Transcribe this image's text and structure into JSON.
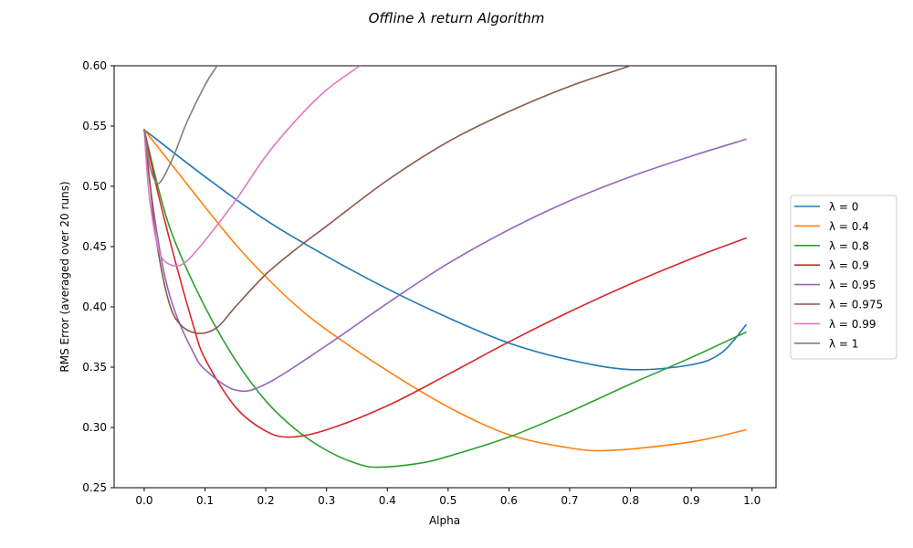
{
  "chart_data": {
    "type": "line",
    "title": "Offline λ return Algorithm",
    "xlabel": "Alpha",
    "ylabel": "RMS Error (averaged over 20 runs)",
    "xlim": [
      -0.0495,
      1.0395
    ],
    "ylim": [
      0.25,
      0.6
    ],
    "xticks": [
      "0.0",
      "0.1",
      "0.2",
      "0.3",
      "0.4",
      "0.5",
      "0.6",
      "0.7",
      "0.8",
      "0.9",
      "1.0"
    ],
    "yticks": [
      "0.25",
      "0.30",
      "0.35",
      "0.40",
      "0.45",
      "0.50",
      "0.55",
      "0.60"
    ],
    "grid": false,
    "legend_position": "outside-right",
    "series": [
      {
        "name": "λ = 0",
        "label_html": "λ = 0",
        "color": "#1f77b4",
        "x": [
          0,
          0.1,
          0.2,
          0.3,
          0.4,
          0.5,
          0.6,
          0.7,
          0.8,
          0.9,
          0.95,
          0.99
        ],
        "y": [
          0.547,
          0.508,
          0.472,
          0.442,
          0.415,
          0.391,
          0.37,
          0.356,
          0.348,
          0.352,
          0.362,
          0.385
        ]
      },
      {
        "name": "λ = 0.4",
        "label_html": "λ = 0.4",
        "color": "#ff7f0e",
        "x": [
          0,
          0.05,
          0.1,
          0.15,
          0.2,
          0.25,
          0.3,
          0.4,
          0.5,
          0.6,
          0.7,
          0.77,
          0.9,
          0.99
        ],
        "y": [
          0.547,
          0.515,
          0.483,
          0.452,
          0.425,
          0.401,
          0.381,
          0.347,
          0.317,
          0.294,
          0.283,
          0.281,
          0.288,
          0.298
        ]
      },
      {
        "name": "λ = 0.8",
        "label_html": "λ = 0.8",
        "color": "#2ca02c",
        "x": [
          0,
          0.025,
          0.05,
          0.1,
          0.15,
          0.2,
          0.25,
          0.3,
          0.35,
          0.385,
          0.45,
          0.5,
          0.6,
          0.7,
          0.8,
          0.9,
          0.99
        ],
        "y": [
          0.547,
          0.495,
          0.455,
          0.4,
          0.356,
          0.322,
          0.298,
          0.281,
          0.27,
          0.267,
          0.27,
          0.276,
          0.292,
          0.313,
          0.336,
          0.358,
          0.379
        ]
      },
      {
        "name": "λ = 0.9",
        "label_html": "λ = 0.9",
        "color": "#d62728",
        "x": [
          0,
          0.02,
          0.05,
          0.08,
          0.1,
          0.15,
          0.2,
          0.24,
          0.3,
          0.4,
          0.5,
          0.6,
          0.7,
          0.8,
          0.9,
          0.99
        ],
        "y": [
          0.547,
          0.5,
          0.44,
          0.386,
          0.357,
          0.317,
          0.297,
          0.292,
          0.298,
          0.318,
          0.344,
          0.371,
          0.396,
          0.419,
          0.44,
          0.457
        ]
      },
      {
        "name": "λ = 0.95",
        "label_html": "λ = 0.95",
        "color": "#9467bd",
        "x": [
          0,
          0.01,
          0.03,
          0.05,
          0.08,
          0.1,
          0.15,
          0.2,
          0.3,
          0.4,
          0.5,
          0.6,
          0.7,
          0.8,
          0.9,
          0.99
        ],
        "y": [
          0.547,
          0.5,
          0.435,
          0.397,
          0.363,
          0.348,
          0.331,
          0.336,
          0.368,
          0.403,
          0.436,
          0.464,
          0.488,
          0.508,
          0.525,
          0.539
        ]
      },
      {
        "name": "λ = 0.975",
        "label_html": "λ = 0.975",
        "color": "#8c564b",
        "x": [
          0,
          0.01,
          0.02,
          0.04,
          0.06,
          0.09,
          0.12,
          0.15,
          0.2,
          0.25,
          0.3,
          0.4,
          0.5,
          0.6,
          0.7,
          0.8
        ],
        "y": [
          0.547,
          0.5,
          0.455,
          0.405,
          0.385,
          0.378,
          0.383,
          0.4,
          0.427,
          0.448,
          0.467,
          0.505,
          0.537,
          0.562,
          0.583,
          0.6
        ]
      },
      {
        "name": "λ = 0.99",
        "label_html": "λ = 0.99",
        "color": "#e377c2",
        "x": [
          0,
          0.005,
          0.01,
          0.02,
          0.03,
          0.05,
          0.07,
          0.1,
          0.15,
          0.2,
          0.25,
          0.3,
          0.355
        ],
        "y": [
          0.547,
          0.51,
          0.485,
          0.455,
          0.44,
          0.434,
          0.438,
          0.455,
          0.488,
          0.525,
          0.555,
          0.58,
          0.6
        ]
      },
      {
        "name": "λ = 1",
        "label_html": "λ = 1",
        "color": "#7f7f7f",
        "x": [
          0,
          0.005,
          0.01,
          0.02,
          0.03,
          0.05,
          0.07,
          0.1,
          0.12
        ],
        "y": [
          0.547,
          0.53,
          0.515,
          0.503,
          0.506,
          0.527,
          0.553,
          0.584,
          0.6
        ]
      }
    ]
  }
}
